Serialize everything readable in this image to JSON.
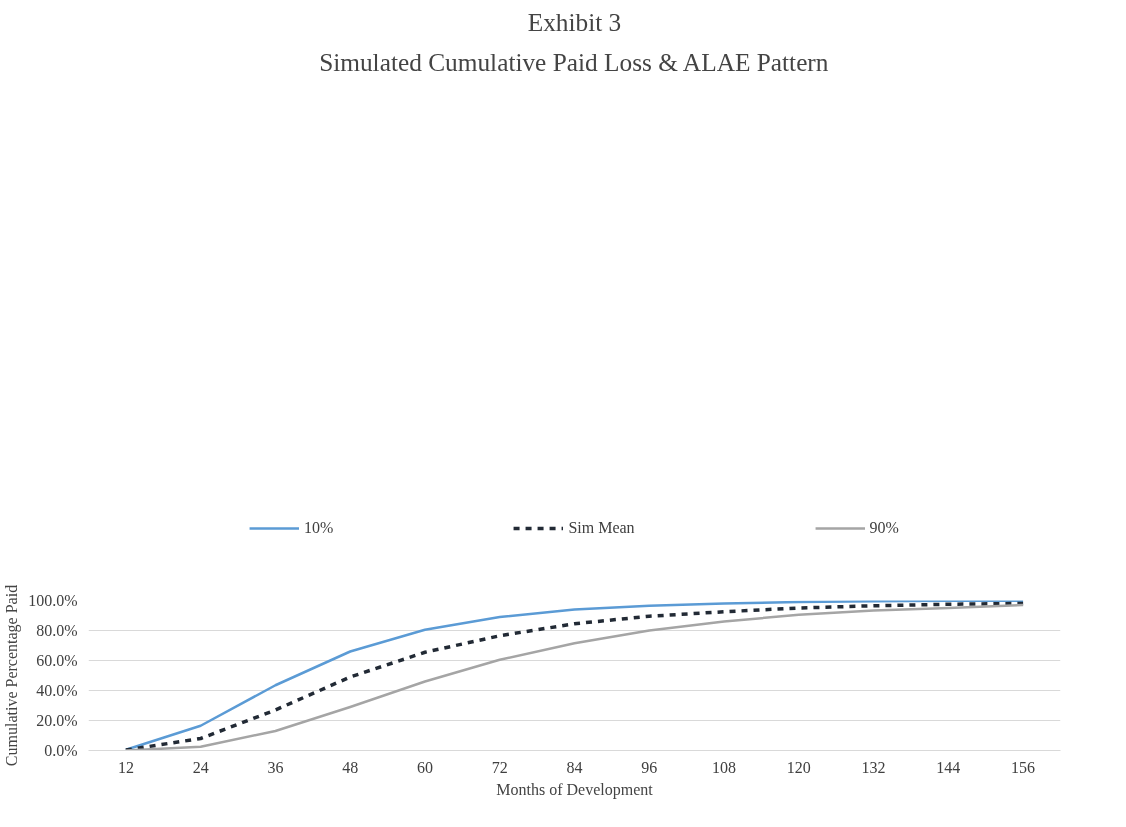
{
  "chart_data": {
    "type": "line",
    "title": "Exhibit 3",
    "subtitle": "Simulated Cumulative Paid Loss & ALAE Pattern",
    "xlabel": "Months of Development",
    "ylabel": "Cumulative Percentage Paid",
    "categories": [
      "12",
      "24",
      "36",
      "48",
      "60",
      "72",
      "84",
      "96",
      "108",
      "120",
      "132",
      "144",
      "156"
    ],
    "series": [
      {
        "name": "10%",
        "color": "#5b9bd5",
        "line_style": "solid",
        "values": [
          0.5,
          16.5,
          43.5,
          66,
          80.5,
          89,
          94,
          96.5,
          98,
          99,
          99.5,
          99.8,
          99.8
        ]
      },
      {
        "name": "Sim Mean",
        "color": "#222a35",
        "line_style": "dashed",
        "values": [
          0.3,
          8,
          27,
          49,
          65.5,
          76.5,
          84.5,
          89.5,
          92.5,
          95,
          96.5,
          97.5,
          98
        ]
      },
      {
        "name": "90%",
        "color": "#a5a5a5",
        "line_style": "solid",
        "values": [
          0,
          2.5,
          13,
          29,
          46,
          60.5,
          71.5,
          80,
          86,
          90.5,
          93.3,
          95,
          97
        ]
      }
    ],
    "ylim": [
      0,
      100
    ],
    "yticks": [
      {
        "value": 0,
        "label": "0.0%"
      },
      {
        "value": 20,
        "label": "20.0%"
      },
      {
        "value": 40,
        "label": "40.0%"
      },
      {
        "value": 60,
        "label": "60.0%"
      },
      {
        "value": 80,
        "label": "80.0%"
      },
      {
        "value": 100,
        "label": "100.0%"
      }
    ],
    "grid": "y",
    "legend": "top"
  }
}
